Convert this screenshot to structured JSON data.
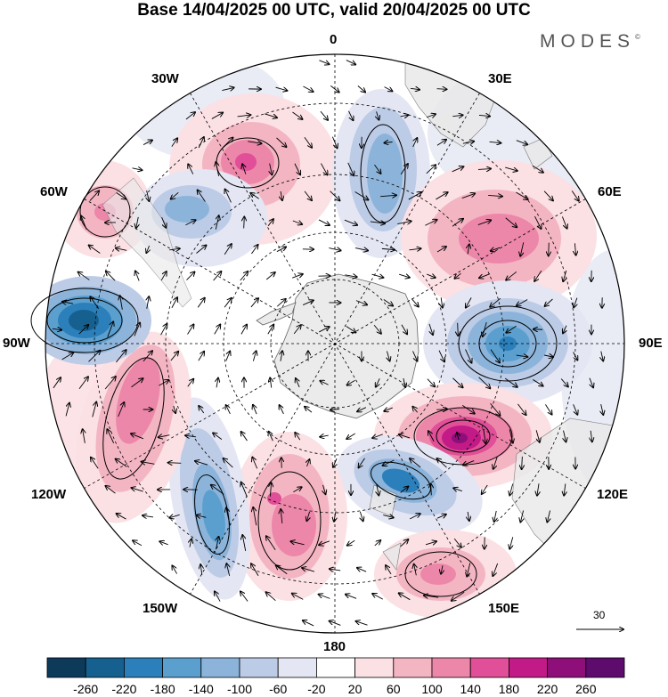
{
  "title": "Base 14/04/2025 00 UTC, valid 20/04/2025 00 UTC",
  "logo": "MODES",
  "logo_mark": "©",
  "longitude_labels": {
    "top": "0",
    "e30": "30E",
    "e60": "60E",
    "e90": "90E",
    "e120": "120E",
    "e150": "150E",
    "bottom": "180",
    "w150": "150W",
    "w120": "120W",
    "w90": "90W",
    "w60": "60W",
    "w30": "30W"
  },
  "reference_vector_label": "30",
  "colorbar": {
    "tick_labels": [
      "-260",
      "-220",
      "-180",
      "-140",
      "-100",
      "-60",
      "-20",
      "20",
      "60",
      "100",
      "140",
      "180",
      "220",
      "260"
    ],
    "colors": [
      "#0e3a5a",
      "#16608f",
      "#2b7fba",
      "#5b9fcf",
      "#8cb4da",
      "#bccbe6",
      "#e4e6f3",
      "#ffffff",
      "#fbe0e4",
      "#f4b5c3",
      "#ec87aa",
      "#e04f97",
      "#c21a86",
      "#8e0f7a",
      "#5e0b6e"
    ]
  },
  "colors": {
    "land": "#e9e9e9",
    "antarctica": "#ebebeb",
    "grid": "#000000"
  }
}
